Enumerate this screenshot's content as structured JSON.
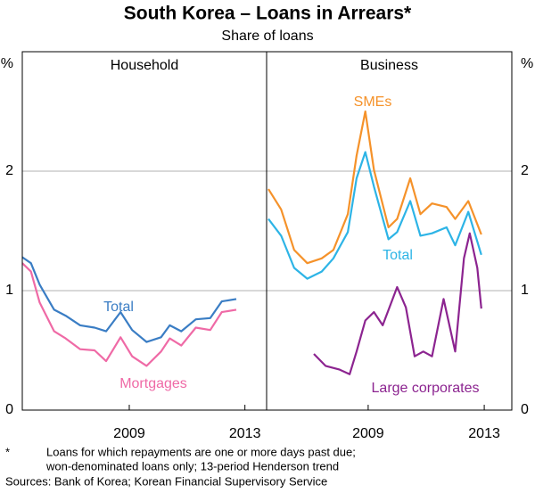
{
  "title": "South Korea – Loans in Arrears*",
  "subtitle": "Share of loans",
  "footnote_marker": "*",
  "notes": [
    "Loans for which repayments are one or more days past due;",
    "won-denominated loans only; 13-period Henderson trend"
  ],
  "sources": "Sources: Bank of Korea; Korean Financial Supervisory Service",
  "chart_data": [
    {
      "type": "line",
      "title": "Household",
      "ylabel": "%",
      "xlim": [
        2005.3,
        2013.75
      ],
      "xticks": [
        2009,
        2013
      ],
      "ylim": [
        0,
        3
      ],
      "yticks": [
        0,
        1,
        2
      ],
      "grid": true,
      "ytick_side": "left",
      "series": [
        {
          "name": "Total",
          "color": "#3a7dc4",
          "x": [
            2005.3,
            2005.6,
            2005.9,
            2006.4,
            2006.8,
            2007.3,
            2007.8,
            2008.2,
            2008.7,
            2009.1,
            2009.6,
            2010.1,
            2010.4,
            2010.8,
            2011.3,
            2011.8,
            2012.2,
            2012.7
          ],
          "values": [
            1.28,
            1.23,
            1.05,
            0.84,
            0.79,
            0.71,
            0.69,
            0.66,
            0.82,
            0.67,
            0.57,
            0.61,
            0.71,
            0.66,
            0.76,
            0.77,
            0.91,
            0.93
          ]
        },
        {
          "name": "Mortgages",
          "color": "#ef6aa6",
          "x": [
            2005.3,
            2005.6,
            2005.9,
            2006.4,
            2006.8,
            2007.3,
            2007.8,
            2008.2,
            2008.7,
            2009.1,
            2009.6,
            2010.1,
            2010.4,
            2010.8,
            2011.3,
            2011.8,
            2012.2,
            2012.7
          ],
          "values": [
            1.23,
            1.16,
            0.9,
            0.66,
            0.6,
            0.51,
            0.5,
            0.41,
            0.61,
            0.45,
            0.37,
            0.49,
            0.6,
            0.54,
            0.69,
            0.67,
            0.82,
            0.84
          ]
        }
      ]
    },
    {
      "type": "line",
      "title": "Business",
      "ylabel": "%",
      "xlim": [
        2005.5,
        2013.95
      ],
      "xticks": [
        2009,
        2013
      ],
      "ylim": [
        0,
        3
      ],
      "yticks": [
        0,
        1,
        2
      ],
      "grid": true,
      "ytick_side": "right",
      "series": [
        {
          "name": "SMEs",
          "color": "#f5922a",
          "x": [
            2005.56,
            2006.0,
            2006.45,
            2006.9,
            2007.4,
            2007.8,
            2008.3,
            2008.6,
            2008.9,
            2009.2,
            2009.7,
            2010.0,
            2010.45,
            2010.8,
            2011.2,
            2011.7,
            2012.0,
            2012.45,
            2012.9
          ],
          "values": [
            1.85,
            1.68,
            1.34,
            1.23,
            1.27,
            1.34,
            1.64,
            2.13,
            2.5,
            2.01,
            1.53,
            1.6,
            1.94,
            1.64,
            1.73,
            1.7,
            1.6,
            1.75,
            1.47
          ]
        },
        {
          "name": "Total",
          "color": "#2db4e6",
          "x": [
            2005.56,
            2006.0,
            2006.45,
            2006.9,
            2007.4,
            2007.8,
            2008.3,
            2008.6,
            2008.9,
            2009.2,
            2009.7,
            2010.0,
            2010.45,
            2010.8,
            2011.2,
            2011.7,
            2012.0,
            2012.45,
            2012.9
          ],
          "values": [
            1.6,
            1.46,
            1.19,
            1.1,
            1.16,
            1.27,
            1.49,
            1.94,
            2.16,
            1.87,
            1.43,
            1.49,
            1.75,
            1.46,
            1.48,
            1.53,
            1.38,
            1.66,
            1.3
          ]
        },
        {
          "name": "Large corporates",
          "color": "#8c2490",
          "x": [
            2007.13,
            2007.53,
            2008.0,
            2008.36,
            2008.6,
            2008.9,
            2009.2,
            2009.5,
            2010.0,
            2010.3,
            2010.6,
            2010.9,
            2011.2,
            2011.6,
            2012.0,
            2012.3,
            2012.5,
            2012.76,
            2012.9
          ],
          "values": [
            0.47,
            0.37,
            0.34,
            0.3,
            0.49,
            0.75,
            0.82,
            0.71,
            1.03,
            0.86,
            0.45,
            0.49,
            0.45,
            0.93,
            0.49,
            1.27,
            1.48,
            1.19,
            0.85
          ]
        }
      ]
    }
  ]
}
